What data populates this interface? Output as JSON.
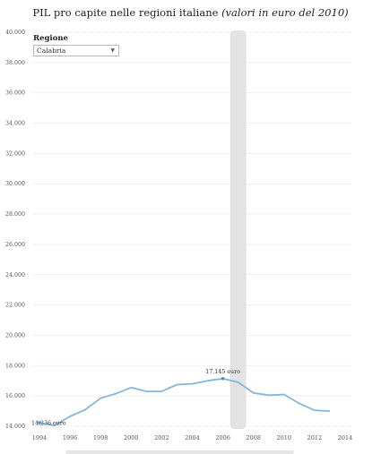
{
  "title_main": "PIL pro capite nelle regioni italiane",
  "title_sub": "(valori in euro del 2010)",
  "filter": {
    "label": "Regione",
    "selected": "Calabria"
  },
  "chart_data": {
    "type": "line",
    "title": "PIL pro capite nelle regioni italiane (valori in euro del 2010)",
    "x": [
      1994,
      1995,
      1996,
      1997,
      1998,
      1999,
      2000,
      2001,
      2002,
      2003,
      2004,
      2005,
      2006,
      2007,
      2008,
      2009,
      2010,
      2011,
      2012,
      2013,
      2014
    ],
    "series": [
      {
        "name": "Calabria",
        "values": [
          14236,
          14050,
          14650,
          15100,
          15850,
          16150,
          16550,
          16300,
          16300,
          16750,
          16800,
          17000,
          17145,
          16900,
          16200,
          16050,
          16100,
          15500,
          15050,
          15000,
          null
        ]
      }
    ],
    "ylim": [
      14000,
      40000
    ],
    "yticks": [
      "14.000",
      "16.000",
      "18.000",
      "20.000",
      "22.000",
      "24.000",
      "26.000",
      "28.000",
      "30.000",
      "32.000",
      "34.000",
      "36.000",
      "38.000",
      "40.000"
    ],
    "xticks": [
      "1994",
      "1996",
      "1998",
      "2000",
      "2002",
      "2004",
      "2006",
      "2008",
      "2010",
      "2012",
      "2014"
    ],
    "annotations": [
      {
        "x": 1994,
        "text": "14.236 euro"
      },
      {
        "x": 2006,
        "text": "17.145 euro"
      }
    ],
    "highlight_x": 2007,
    "line_color": "#86b6d9",
    "grid": true
  }
}
